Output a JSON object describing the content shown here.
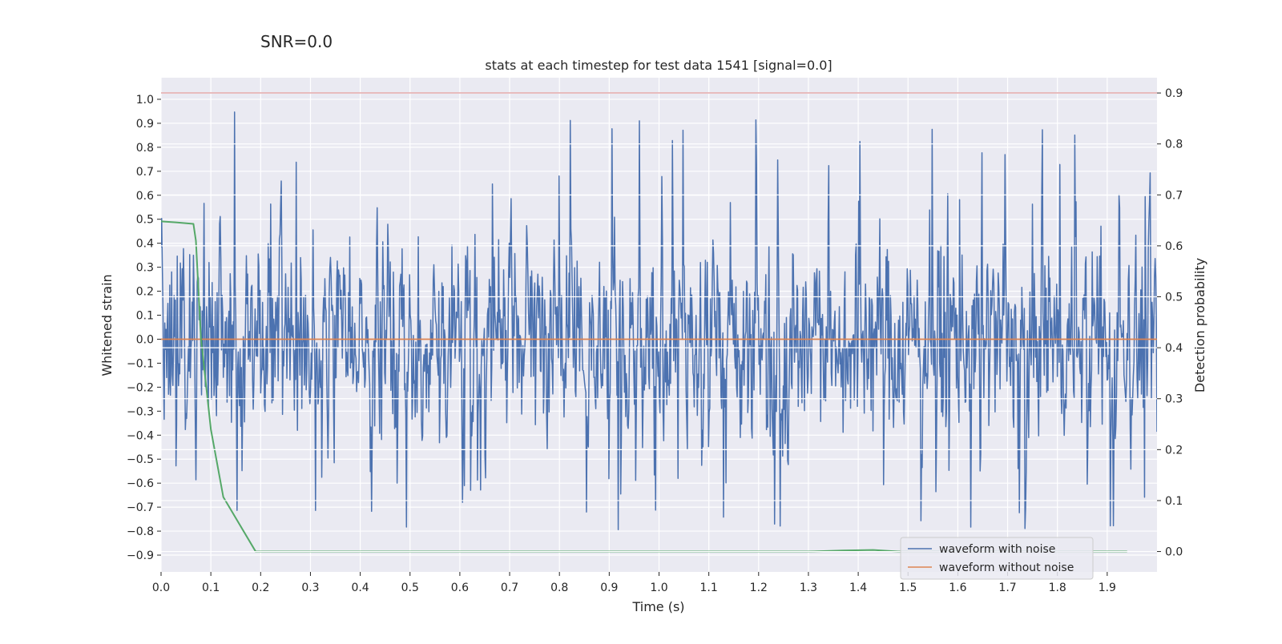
{
  "figure": {
    "suptitle": "SNR=0.0"
  },
  "chart_data": {
    "type": "line",
    "title": "stats at each timestep for test data 1541 [signal=0.0]",
    "xlabel": "Time (s)",
    "ylabel_left": "Whitened strain",
    "ylabel_right": "Detection probability",
    "xlim": [
      0.0,
      2.0
    ],
    "ylim_left": [
      -0.97,
      1.09
    ],
    "ylim_right": [
      -0.04,
      0.93
    ],
    "x_ticks": [
      "0.0",
      "0.1",
      "0.2",
      "0.3",
      "0.4",
      "0.5",
      "0.6",
      "0.7",
      "0.8",
      "0.9",
      "1.0",
      "1.1",
      "1.2",
      "1.3",
      "1.4",
      "1.5",
      "1.6",
      "1.7",
      "1.8",
      "1.9"
    ],
    "y_ticks_left": [
      "1.0",
      "0.9",
      "0.8",
      "0.7",
      "0.6",
      "0.5",
      "0.4",
      "0.3",
      "0.2",
      "0.1",
      "0.0",
      "−0.1",
      "−0.2",
      "−0.3",
      "−0.4",
      "−0.5",
      "−0.6",
      "−0.7",
      "−0.8",
      "−0.9"
    ],
    "y_ticks_right": [
      "0.9",
      "0.8",
      "0.7",
      "0.6",
      "0.5",
      "0.4",
      "0.3",
      "0.2",
      "0.1",
      "0.0"
    ],
    "grid": true,
    "legend_position": "lower-right",
    "series": [
      {
        "name": "waveform with noise",
        "axis": "left",
        "color": "#4c72b0",
        "style": "noise",
        "n_points": 1600,
        "amplitude_range": [
          -0.85,
          1.0
        ]
      },
      {
        "name": "waveform without noise",
        "axis": "left",
        "color": "#dd8452",
        "x": [
          0.0,
          2.0
        ],
        "y": [
          0.0,
          0.0
        ]
      },
      {
        "axis": "right",
        "color": "#55a868",
        "x": [
          0.0,
          0.03,
          0.065,
          0.07,
          0.08,
          0.1,
          0.125,
          0.19,
          0.25,
          0.4,
          0.6,
          0.8,
          1.0,
          1.2,
          1.3,
          1.37,
          1.43,
          1.48,
          1.6,
          1.8,
          1.94
        ],
        "y": [
          0.648,
          0.646,
          0.643,
          0.61,
          0.42,
          0.24,
          0.107,
          0.0,
          0.0,
          0.0,
          0.0,
          0.0,
          0.0,
          0.0,
          0.0,
          0.002,
          0.003,
          0.0,
          0.0,
          0.0,
          0.0
        ]
      },
      {
        "axis": "right",
        "color": "#c44e52",
        "x": [
          0.0,
          2.0
        ],
        "y": [
          0.9,
          0.9
        ]
      }
    ]
  }
}
